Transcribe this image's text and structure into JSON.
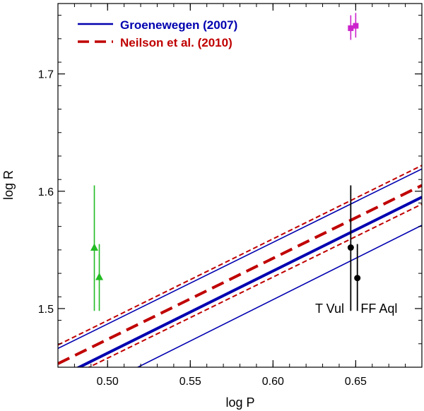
{
  "chart_data": {
    "type": "line",
    "xlabel": "log P",
    "ylabel": "log R",
    "xlim": [
      0.47,
      0.69
    ],
    "ylim": [
      1.45,
      1.76
    ],
    "xticks": [
      0.5,
      0.55,
      0.6,
      0.65
    ],
    "xtick_labels": [
      "0.50",
      "0.55",
      "0.60",
      "0.65"
    ],
    "yticks": [
      1.5,
      1.6,
      1.7
    ],
    "ytick_labels": [
      "1.5",
      "1.6",
      "1.7"
    ],
    "legend": {
      "position": "top-left",
      "entries": [
        {
          "label": "Groenewegen (2007)",
          "color": "#0000b0",
          "style": "solid"
        },
        {
          "label": "Neilson et al. (2010)",
          "color": "#c00000",
          "style": "dashed"
        }
      ]
    },
    "series": [
      {
        "name": "Groenewegen (2007) fit",
        "color": "#0000b0",
        "style": "solid",
        "width": "thick",
        "x": [
          0.47,
          0.69
        ],
        "y": [
          1.441,
          1.595
        ]
      },
      {
        "name": "Groenewegen (2007) upper",
        "color": "#0000b0",
        "style": "solid",
        "width": "thin",
        "x": [
          0.47,
          0.69
        ],
        "y": [
          1.466,
          1.619
        ]
      },
      {
        "name": "Groenewegen (2007) lower",
        "color": "#0000b0",
        "style": "solid",
        "width": "thin",
        "x": [
          0.47,
          0.69
        ],
        "y": [
          1.416,
          1.571
        ]
      },
      {
        "name": "Neilson et al. (2010) fit",
        "color": "#c00000",
        "style": "dashed",
        "width": "thick",
        "x": [
          0.47,
          0.69
        ],
        "y": [
          1.453,
          1.605
        ]
      },
      {
        "name": "Neilson et al. (2010) upper",
        "color": "#c00000",
        "style": "dashed",
        "width": "thin",
        "x": [
          0.47,
          0.69
        ],
        "y": [
          1.469,
          1.622
        ]
      },
      {
        "name": "Neilson et al. (2010) lower",
        "color": "#c00000",
        "style": "dashed",
        "width": "thin",
        "x": [
          0.47,
          0.69
        ],
        "y": [
          1.437,
          1.589
        ]
      }
    ],
    "points": [
      {
        "group": "green",
        "color": "#22bb22",
        "marker": "triangle",
        "x": 0.492,
        "y": 1.552,
        "err_lo": 1.498,
        "err_hi": 1.605
      },
      {
        "group": "green",
        "color": "#22bb22",
        "marker": "triangle",
        "x": 0.495,
        "y": 1.527,
        "err_lo": 1.498,
        "err_hi": 1.555
      },
      {
        "group": "magenta",
        "color": "#cc22cc",
        "marker": "square",
        "x": 0.647,
        "y": 1.739,
        "err_lo": 1.729,
        "err_hi": 1.75
      },
      {
        "group": "magenta",
        "color": "#cc22cc",
        "marker": "square",
        "x": 0.65,
        "y": 1.741,
        "err_lo": 1.731,
        "err_hi": 1.752
      },
      {
        "group": "T Vul",
        "color": "#000000",
        "marker": "circle",
        "x": 0.647,
        "y": 1.552,
        "err_lo": 1.498,
        "err_hi": 1.605
      },
      {
        "group": "FF Aql",
        "color": "#000000",
        "marker": "circle",
        "x": 0.651,
        "y": 1.526,
        "err_lo": 1.498,
        "err_hi": 1.555
      }
    ],
    "annotations": [
      {
        "text": "T Vul",
        "x": 0.643,
        "y": 1.5,
        "align": "end"
      },
      {
        "text": "FF Aql",
        "x": 0.653,
        "y": 1.5,
        "align": "start"
      }
    ]
  }
}
